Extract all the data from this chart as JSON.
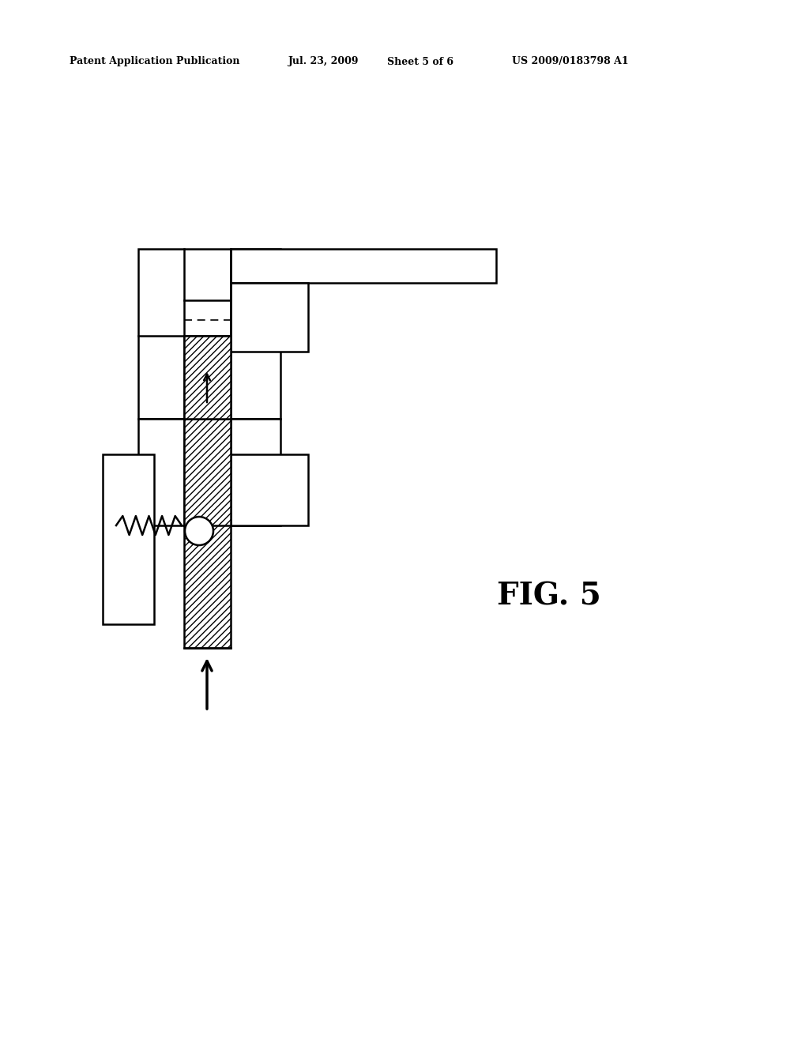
{
  "bg_color": "#ffffff",
  "header_text": "Patent Application Publication",
  "header_date": "Jul. 23, 2009",
  "header_sheet": "Sheet 5 of 6",
  "header_patent": "US 2009/0183798 A1",
  "fig_label": "FIG. 5",
  "line_color": "#000000",
  "line_width": 1.8
}
